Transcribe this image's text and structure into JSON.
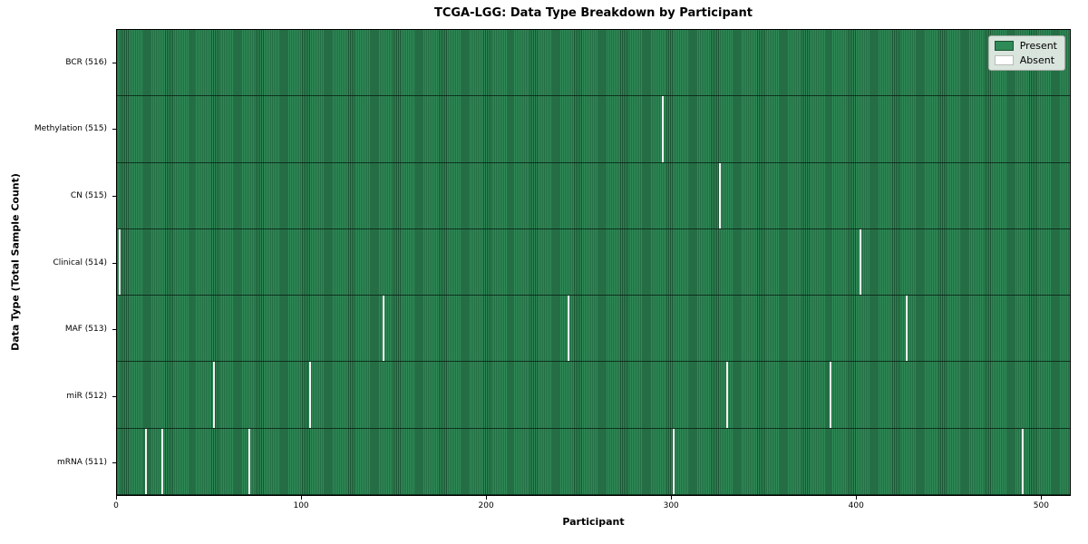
{
  "chart_data": {
    "type": "heatmap",
    "title": "TCGA-LGG: Data Type Breakdown by Participant",
    "xlabel": "Participant",
    "ylabel": "Data Type (Total Sample Count)",
    "xlim": [
      0,
      516
    ],
    "x_ticks": [
      0,
      100,
      200,
      300,
      400,
      500
    ],
    "grid": false,
    "legend": {
      "position": "upper right",
      "entries": [
        {
          "label": "Present",
          "color": "#2e8b57",
          "border": "#1c5233"
        },
        {
          "label": "Absent",
          "color": "#ffffff",
          "border": "#bbbbbb"
        }
      ]
    },
    "colors": {
      "present": "#2e8b57",
      "absent": "#ffffff"
    },
    "rows": [
      {
        "name": "BCR",
        "label": "BCR (516)",
        "present_count": 516,
        "absent_participants": []
      },
      {
        "name": "Methylation",
        "label": "Methylation (515)",
        "present_count": 515,
        "absent_participants": [
          295
        ]
      },
      {
        "name": "CN",
        "label": "CN (515)",
        "present_count": 515,
        "absent_participants": [
          326
        ]
      },
      {
        "name": "Clinical",
        "label": "Clinical (514)",
        "present_count": 514,
        "absent_participants": [
          1,
          402
        ]
      },
      {
        "name": "MAF",
        "label": "MAF (513)",
        "present_count": 513,
        "absent_participants": [
          144,
          244,
          427
        ]
      },
      {
        "name": "miR",
        "label": "miR (512)",
        "present_count": 512,
        "absent_participants": [
          52,
          104,
          330,
          386
        ]
      },
      {
        "name": "mRNA",
        "label": "mRNA (511)",
        "present_count": 511,
        "absent_participants": [
          15,
          24,
          71,
          301,
          490
        ]
      }
    ]
  }
}
